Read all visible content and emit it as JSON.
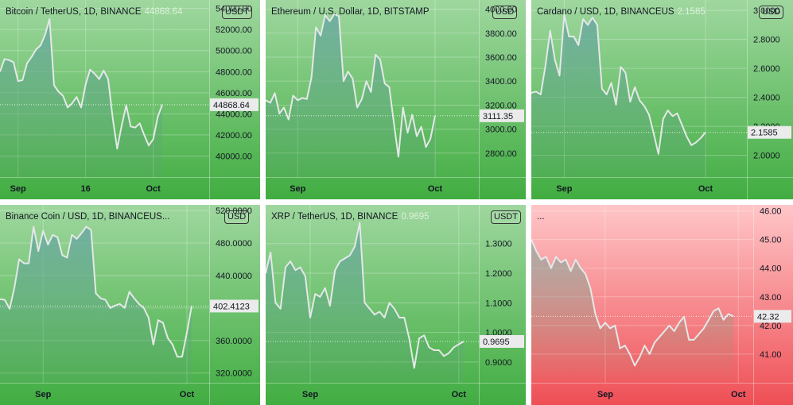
{
  "colors": {
    "green_top": "#9fd79f",
    "green_bottom": "#41ad41",
    "red_top": "#ffc6c8",
    "red_bottom": "#ee4f55",
    "line": "#e4e8e8",
    "area_top": "#6aa9a3",
    "area_bottom": "#5aa66a"
  },
  "chart_data": [
    {
      "type": "area",
      "title": "Bitcoin / TetherUS, 1D, BINANCE",
      "last_value_text": "44868.64",
      "currency": "USDT",
      "ylim": [
        38000,
        54500
      ],
      "y_ticks": [
        40000,
        42000,
        44000,
        46000,
        48000,
        50000,
        52000,
        54000
      ],
      "y_tick_labels": [
        "40000.00",
        "42000.00",
        "44000.00",
        "46000.00",
        "48000.00",
        "50000.00",
        "52000.00",
        "54000.00"
      ],
      "x_ticks": [
        {
          "label": "Sep",
          "i": 4
        },
        {
          "label": "16",
          "i": 19
        },
        {
          "label": "Oct",
          "i": 34
        }
      ],
      "price_label": "44868.64",
      "price_value": 44868.64,
      "values": [
        48000,
        49200,
        49100,
        48900,
        47100,
        47200,
        48800,
        49400,
        50100,
        50500,
        51500,
        53000,
        46700,
        46100,
        45700,
        44600,
        45000,
        45600,
        44600,
        46800,
        48200,
        47800,
        47300,
        48100,
        47300,
        43600,
        40700,
        42900,
        44800,
        42800,
        42700,
        43100,
        42000,
        41000,
        41600,
        43700,
        44868
      ]
    },
    {
      "type": "area",
      "title": "Ethereum / U.S. Dollar, 1D, BITSTAMP",
      "last_value_text": "",
      "currency": "USD",
      "ylim": [
        2600,
        4050
      ],
      "y_ticks": [
        2800,
        3000,
        3200,
        3400,
        3600,
        3800,
        4000
      ],
      "y_tick_labels": [
        "2800.00",
        "3000.00",
        "3200.00",
        "3400.00",
        "3600.00",
        "3800.00",
        "4000.00"
      ],
      "x_ticks": [
        {
          "label": "Sep",
          "i": 7
        },
        {
          "label": "Oct",
          "i": 37
        }
      ],
      "price_label": "3111.35",
      "price_value": 3111.35,
      "values": [
        3240,
        3220,
        3300,
        3130,
        3180,
        3080,
        3280,
        3240,
        3260,
        3250,
        3430,
        3850,
        3780,
        3950,
        3900,
        3960,
        3940,
        3400,
        3480,
        3420,
        3180,
        3250,
        3400,
        3310,
        3620,
        3580,
        3380,
        3350,
        3050,
        2770,
        3180,
        2970,
        3120,
        2940,
        3020,
        2850,
        2920,
        3111
      ]
    },
    {
      "type": "area",
      "title": "Cardano / USD, 1D, BINANCEUS",
      "last_value_text": "2.1585",
      "currency": "USD",
      "ylim": [
        1.85,
        3.05
      ],
      "y_ticks": [
        2.0,
        2.2,
        2.4,
        2.6,
        2.8,
        3.0
      ],
      "y_tick_labels": [
        "2.0000",
        "2.2000",
        "2.4000",
        "2.6000",
        "2.8000",
        "3.0000"
      ],
      "x_ticks": [
        {
          "label": "Sep",
          "i": 7
        },
        {
          "label": "Oct",
          "i": 37
        }
      ],
      "price_label": "2.1585",
      "price_value": 2.1585,
      "values": [
        2.43,
        2.44,
        2.42,
        2.62,
        2.86,
        2.66,
        2.55,
        2.97,
        2.82,
        2.82,
        2.76,
        2.94,
        2.9,
        2.95,
        2.9,
        2.46,
        2.42,
        2.5,
        2.35,
        2.61,
        2.57,
        2.37,
        2.47,
        2.38,
        2.34,
        2.28,
        2.15,
        2.01,
        2.25,
        2.31,
        2.27,
        2.29,
        2.21,
        2.13,
        2.07,
        2.09,
        2.12,
        2.1585
      ]
    },
    {
      "type": "area",
      "title": "Binance Coin / USD, 1D, BINANCEUS...",
      "last_value_text": "",
      "currency": "USD",
      "ylim": [
        308,
        523
      ],
      "y_ticks": [
        320,
        360,
        400,
        440,
        480,
        520
      ],
      "y_tick_labels": [
        "320.0000",
        "360.0000",
        "400.0000",
        "440.0000",
        "480.0000",
        "520.0000"
      ],
      "x_ticks": [
        {
          "label": "Sep",
          "i": 9
        },
        {
          "label": "Oct",
          "i": 39
        }
      ],
      "price_label": "402.4123",
      "price_value": 402.4123,
      "values": [
        411,
        410,
        399,
        425,
        460,
        455,
        455,
        500,
        470,
        495,
        478,
        490,
        487,
        465,
        462,
        490,
        485,
        492,
        500,
        496,
        418,
        412,
        410,
        400,
        403,
        405,
        400,
        420,
        412,
        405,
        400,
        388,
        355,
        385,
        382,
        363,
        355,
        340,
        340,
        370,
        402.4
      ]
    },
    {
      "type": "area",
      "title": "XRP / TetherUS, 1D, BINANCE",
      "last_value_text": "0.9695",
      "currency": "USDT",
      "ylim": [
        0.83,
        1.42
      ],
      "y_ticks": [
        0.9,
        1.0,
        1.1,
        1.2,
        1.3
      ],
      "y_tick_labels": [
        "0.9000",
        "1.0000",
        "1.1000",
        "1.2000",
        "1.3000"
      ],
      "x_ticks": [
        {
          "label": "Sep",
          "i": 9
        },
        {
          "label": "Oct",
          "i": 39
        }
      ],
      "price_label": "0.9695",
      "price_value": 0.9695,
      "values": [
        1.2,
        1.27,
        1.1,
        1.08,
        1.22,
        1.24,
        1.21,
        1.22,
        1.19,
        1.05,
        1.13,
        1.12,
        1.15,
        1.09,
        1.21,
        1.24,
        1.25,
        1.26,
        1.29,
        1.37,
        1.1,
        1.08,
        1.06,
        1.07,
        1.05,
        1.1,
        1.08,
        1.05,
        1.05,
        0.98,
        0.88,
        0.98,
        0.99,
        0.95,
        0.94,
        0.94,
        0.92,
        0.93,
        0.95,
        0.96,
        0.9695
      ]
    },
    {
      "type": "area",
      "title": "...",
      "last_value_text": "",
      "currency": "",
      "ylim": [
        40.0,
        46.1
      ],
      "y_ticks": [
        41,
        42,
        43,
        44,
        45,
        46
      ],
      "y_tick_labels": [
        "41.00",
        "42.00",
        "43.00",
        "44.00",
        "45.00",
        "46.00"
      ],
      "x_ticks": [
        {
          "label": "Sep",
          "i": 15
        },
        {
          "label": "Oct",
          "i": 42
        }
      ],
      "price_label": "42.32",
      "price_value": 42.32,
      "values": [
        45.0,
        44.6,
        44.3,
        44.4,
        44.0,
        44.4,
        44.2,
        44.3,
        43.9,
        44.3,
        44.0,
        43.8,
        43.3,
        42.4,
        41.9,
        42.1,
        41.9,
        42.0,
        41.2,
        41.3,
        41.0,
        40.6,
        40.9,
        41.3,
        41.0,
        41.4,
        41.6,
        41.8,
        42.0,
        41.8,
        42.1,
        42.3,
        41.5,
        41.5,
        41.7,
        41.9,
        42.2,
        42.5,
        42.6,
        42.2,
        42.4,
        42.32
      ]
    }
  ]
}
